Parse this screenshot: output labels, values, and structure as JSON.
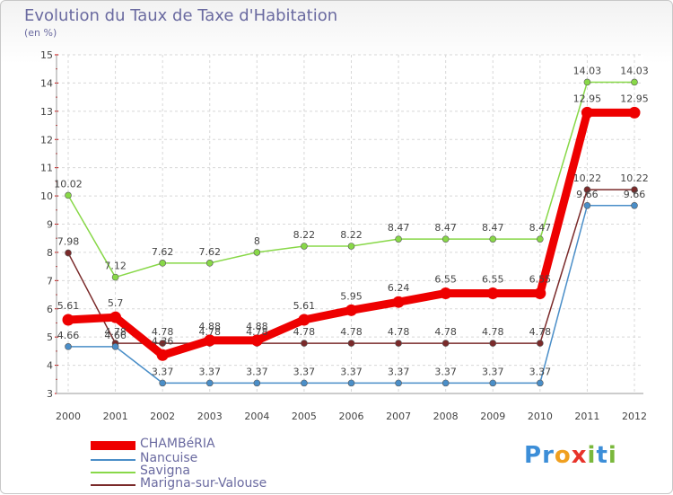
{
  "title": "Evolution du Taux de Taxe d'Habitation",
  "subtitle": "(en %)",
  "logo": {
    "text": "Proxiti",
    "letters": [
      "P",
      "r",
      "o",
      "x",
      "i",
      "t",
      "i"
    ],
    "colors": [
      "#3c8ed8",
      "#3c8ed8",
      "#f0a020",
      "#e8332a",
      "#7ab83c",
      "#3c8ed8",
      "#7ab83c"
    ]
  },
  "chart_data": {
    "type": "line",
    "x": [
      "2000",
      "2001",
      "2002",
      "2003",
      "2004",
      "2005",
      "2006",
      "2007",
      "2008",
      "2009",
      "2010",
      "2011",
      "2012"
    ],
    "ylim": [
      3,
      15
    ],
    "yticks": [
      "3",
      "4",
      "5",
      "6",
      "7",
      "8",
      "9",
      "10",
      "11",
      "12",
      "13",
      "14",
      "15"
    ],
    "grid": true,
    "legend_position": "bottom-left",
    "series": [
      {
        "name": "Marigna-sur-Valouse",
        "color": "#7a2a2a",
        "values": [
          7.98,
          4.78,
          4.78,
          4.78,
          4.78,
          4.78,
          4.78,
          4.78,
          4.78,
          4.78,
          4.78,
          10.22,
          10.22
        ],
        "labels": [
          "7.98",
          "4.78",
          "4.78",
          "4.78",
          "4.78",
          "4.78",
          "4.78",
          "4.78",
          "4.78",
          "4.78",
          "4.78",
          "10.22",
          "10.22"
        ]
      },
      {
        "name": "Nancuise",
        "color": "#4a8ec8",
        "values": [
          4.66,
          4.66,
          3.37,
          3.37,
          3.37,
          3.37,
          3.37,
          3.37,
          3.37,
          3.37,
          3.37,
          9.66,
          9.66
        ],
        "labels": [
          "4.66",
          "4.66",
          "3.37",
          "3.37",
          "3.37",
          "3.37",
          "3.37",
          "3.37",
          "3.37",
          "3.37",
          "3.37",
          "9.66",
          "9.66"
        ]
      },
      {
        "name": "Savigna",
        "color": "#88d848",
        "values": [
          10.02,
          7.12,
          7.62,
          7.62,
          8,
          8.22,
          8.22,
          8.47,
          8.47,
          8.47,
          8.47,
          14.03,
          14.03
        ],
        "labels": [
          "10.02",
          "7.12",
          "7.62",
          "7.62",
          "8",
          "8.22",
          "8.22",
          "8.47",
          "8.47",
          "8.47",
          "8.47",
          "14.03",
          "14.03"
        ]
      },
      {
        "name": "CHAMBéRIA",
        "color": "#ee0000",
        "values": [
          5.61,
          5.7,
          4.36,
          4.88,
          4.88,
          5.61,
          5.95,
          6.24,
          6.55,
          6.55,
          6.55,
          12.95,
          12.95
        ],
        "labels": [
          "5.61",
          "5.7",
          "4.36",
          "4.88",
          "4.88",
          "5.61",
          "5.95",
          "6.24",
          "6.55",
          "6.55",
          "6.55",
          "12.95",
          "12.95"
        ]
      }
    ],
    "legend_order": [
      "CHAMBéRIA",
      "Nancuise",
      "Savigna",
      "Marigna-sur-Valouse"
    ]
  }
}
